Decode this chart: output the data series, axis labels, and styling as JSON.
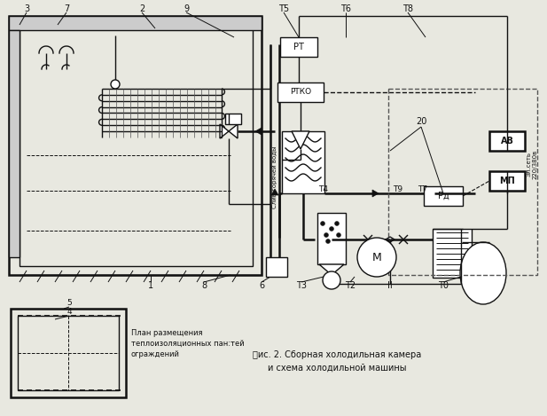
{
  "bg_color": "#e8e8e0",
  "line_color": "#111111",
  "lw": 1.0,
  "lw2": 1.8,
  "title_line1": "䈏ис. 2. Сборная холодильная камера",
  "title_line2": "и схема холодильной машины",
  "caption_line1": "План размещения",
  "caption_line2": "теплоизоляционных пан:тей",
  "caption_line3": "ограждений"
}
